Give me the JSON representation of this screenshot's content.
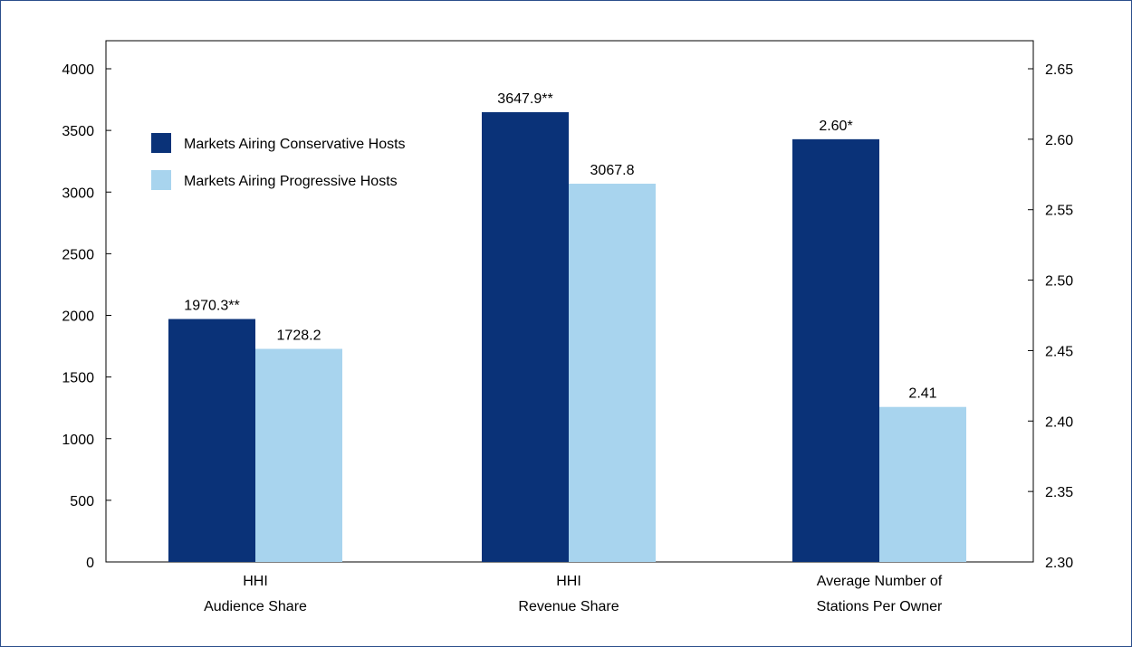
{
  "chart_data": {
    "type": "bar",
    "categories": [
      [
        "HHI",
        "Audience Share"
      ],
      [
        "HHI",
        "Revenue Share"
      ],
      [
        "Average Number of",
        "Stations Per Owner"
      ]
    ],
    "series": [
      {
        "name": "Markets Airing Conservative Hosts",
        "color": "#0a3278",
        "values": [
          1970.3,
          3647.9,
          2.6
        ],
        "labels": [
          "1970.3**",
          "3647.9**",
          "2.60*"
        ],
        "axis": [
          "left",
          "left",
          "right"
        ]
      },
      {
        "name": "Markets Airing Progressive Hosts",
        "color": "#a8d4ee",
        "values": [
          1728.2,
          3067.8,
          2.41
        ],
        "labels": [
          "1728.2",
          "3067.8",
          "2.41"
        ],
        "axis": [
          "left",
          "left",
          "right"
        ]
      }
    ],
    "left_axis": {
      "ylim": [
        0,
        4000
      ],
      "ticks": [
        "0",
        "500",
        "1000",
        "1500",
        "2000",
        "2500",
        "3000",
        "3500",
        "4000"
      ],
      "tick_values": [
        0,
        500,
        1000,
        1500,
        2000,
        2500,
        3000,
        3500,
        4000
      ]
    },
    "right_axis": {
      "ylim": [
        2.3,
        2.65
      ],
      "ticks": [
        "2.30",
        "2.35",
        "2.40",
        "2.45",
        "2.50",
        "2.55",
        "2.60",
        "2.65"
      ],
      "tick_values": [
        2.3,
        2.35,
        2.4,
        2.45,
        2.5,
        2.55,
        2.6,
        2.65
      ]
    },
    "legend_position": "top-left",
    "grid": false
  }
}
